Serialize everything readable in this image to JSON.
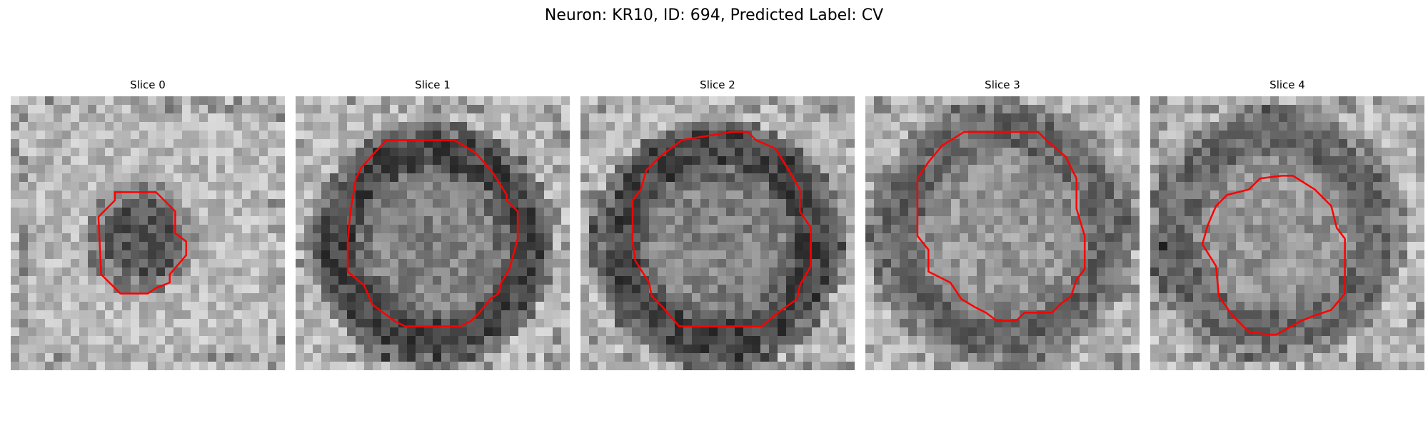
{
  "figure": {
    "title": "Neuron: KR10, ID: 694, Predicted Label: CV"
  },
  "panels": [
    {
      "title": "Slice 0",
      "image": {
        "blob_center": [
          0.48,
          0.52
        ],
        "blob_radius": 0.17,
        "ring": false,
        "tone": "dark-blob"
      },
      "contour": [
        [
          0.38,
          0.35
        ],
        [
          0.53,
          0.35
        ],
        [
          0.6,
          0.42
        ],
        [
          0.6,
          0.5
        ],
        [
          0.64,
          0.53
        ],
        [
          0.64,
          0.58
        ],
        [
          0.58,
          0.65
        ],
        [
          0.58,
          0.68
        ],
        [
          0.53,
          0.7
        ],
        [
          0.5,
          0.72
        ],
        [
          0.4,
          0.72
        ],
        [
          0.33,
          0.65
        ],
        [
          0.32,
          0.44
        ],
        [
          0.38,
          0.38
        ]
      ]
    },
    {
      "title": "Slice 1",
      "image": {
        "blob_center": [
          0.5,
          0.54
        ],
        "blob_radius": 0.34,
        "ring": true,
        "tone": "ring-dark"
      },
      "contour": [
        [
          0.33,
          0.16
        ],
        [
          0.58,
          0.16
        ],
        [
          0.63,
          0.19
        ],
        [
          0.66,
          0.21
        ],
        [
          0.72,
          0.28
        ],
        [
          0.77,
          0.36
        ],
        [
          0.77,
          0.38
        ],
        [
          0.81,
          0.42
        ],
        [
          0.81,
          0.52
        ],
        [
          0.78,
          0.63
        ],
        [
          0.75,
          0.68
        ],
        [
          0.74,
          0.72
        ],
        [
          0.71,
          0.74
        ],
        [
          0.67,
          0.79
        ],
        [
          0.64,
          0.82
        ],
        [
          0.6,
          0.84
        ],
        [
          0.4,
          0.84
        ],
        [
          0.36,
          0.82
        ],
        [
          0.28,
          0.76
        ],
        [
          0.25,
          0.69
        ],
        [
          0.19,
          0.64
        ],
        [
          0.19,
          0.53
        ],
        [
          0.2,
          0.42
        ],
        [
          0.22,
          0.3
        ],
        [
          0.24,
          0.26
        ]
      ]
    },
    {
      "title": "Slice 2",
      "image": {
        "blob_center": [
          0.5,
          0.54
        ],
        "blob_radius": 0.35,
        "ring": true,
        "tone": "ring-dark"
      },
      "contour": [
        [
          0.37,
          0.16
        ],
        [
          0.55,
          0.13
        ],
        [
          0.61,
          0.13
        ],
        [
          0.64,
          0.16
        ],
        [
          0.71,
          0.19
        ],
        [
          0.76,
          0.27
        ],
        [
          0.8,
          0.34
        ],
        [
          0.8,
          0.42
        ],
        [
          0.84,
          0.48
        ],
        [
          0.84,
          0.62
        ],
        [
          0.8,
          0.69
        ],
        [
          0.79,
          0.74
        ],
        [
          0.72,
          0.79
        ],
        [
          0.66,
          0.84
        ],
        [
          0.62,
          0.84
        ],
        [
          0.36,
          0.84
        ],
        [
          0.3,
          0.77
        ],
        [
          0.26,
          0.73
        ],
        [
          0.25,
          0.68
        ],
        [
          0.2,
          0.6
        ],
        [
          0.19,
          0.53
        ],
        [
          0.19,
          0.38
        ],
        [
          0.22,
          0.34
        ],
        [
          0.24,
          0.27
        ],
        [
          0.29,
          0.22
        ]
      ]
    },
    {
      "title": "Slice 3",
      "image": {
        "blob_center": [
          0.5,
          0.5
        ],
        "blob_radius": 0.37,
        "ring": true,
        "tone": "ring-mid"
      },
      "contour": [
        [
          0.36,
          0.13
        ],
        [
          0.63,
          0.13
        ],
        [
          0.66,
          0.16
        ],
        [
          0.73,
          0.22
        ],
        [
          0.77,
          0.3
        ],
        [
          0.77,
          0.41
        ],
        [
          0.8,
          0.51
        ],
        [
          0.8,
          0.63
        ],
        [
          0.77,
          0.67
        ],
        [
          0.75,
          0.73
        ],
        [
          0.71,
          0.76
        ],
        [
          0.68,
          0.79
        ],
        [
          0.58,
          0.79
        ],
        [
          0.55,
          0.82
        ],
        [
          0.48,
          0.82
        ],
        [
          0.44,
          0.79
        ],
        [
          0.4,
          0.77
        ],
        [
          0.35,
          0.74
        ],
        [
          0.31,
          0.68
        ],
        [
          0.23,
          0.64
        ],
        [
          0.23,
          0.56
        ],
        [
          0.19,
          0.51
        ],
        [
          0.19,
          0.3
        ],
        [
          0.23,
          0.24
        ],
        [
          0.28,
          0.18
        ]
      ]
    },
    {
      "title": "Slice 4",
      "image": {
        "blob_center": [
          0.46,
          0.5
        ],
        "blob_radius": 0.36,
        "ring": true,
        "tone": "ring-mid"
      },
      "contour": [
        [
          0.48,
          0.29
        ],
        [
          0.52,
          0.29
        ],
        [
          0.6,
          0.34
        ],
        [
          0.66,
          0.4
        ],
        [
          0.68,
          0.48
        ],
        [
          0.71,
          0.52
        ],
        [
          0.71,
          0.72
        ],
        [
          0.66,
          0.78
        ],
        [
          0.6,
          0.8
        ],
        [
          0.55,
          0.82
        ],
        [
          0.46,
          0.87
        ],
        [
          0.44,
          0.87
        ],
        [
          0.36,
          0.86
        ],
        [
          0.3,
          0.8
        ],
        [
          0.25,
          0.73
        ],
        [
          0.24,
          0.62
        ],
        [
          0.19,
          0.54
        ],
        [
          0.21,
          0.47
        ],
        [
          0.24,
          0.4
        ],
        [
          0.28,
          0.36
        ],
        [
          0.36,
          0.34
        ],
        [
          0.4,
          0.3
        ]
      ]
    }
  ],
  "contour_color": "#ff0000"
}
